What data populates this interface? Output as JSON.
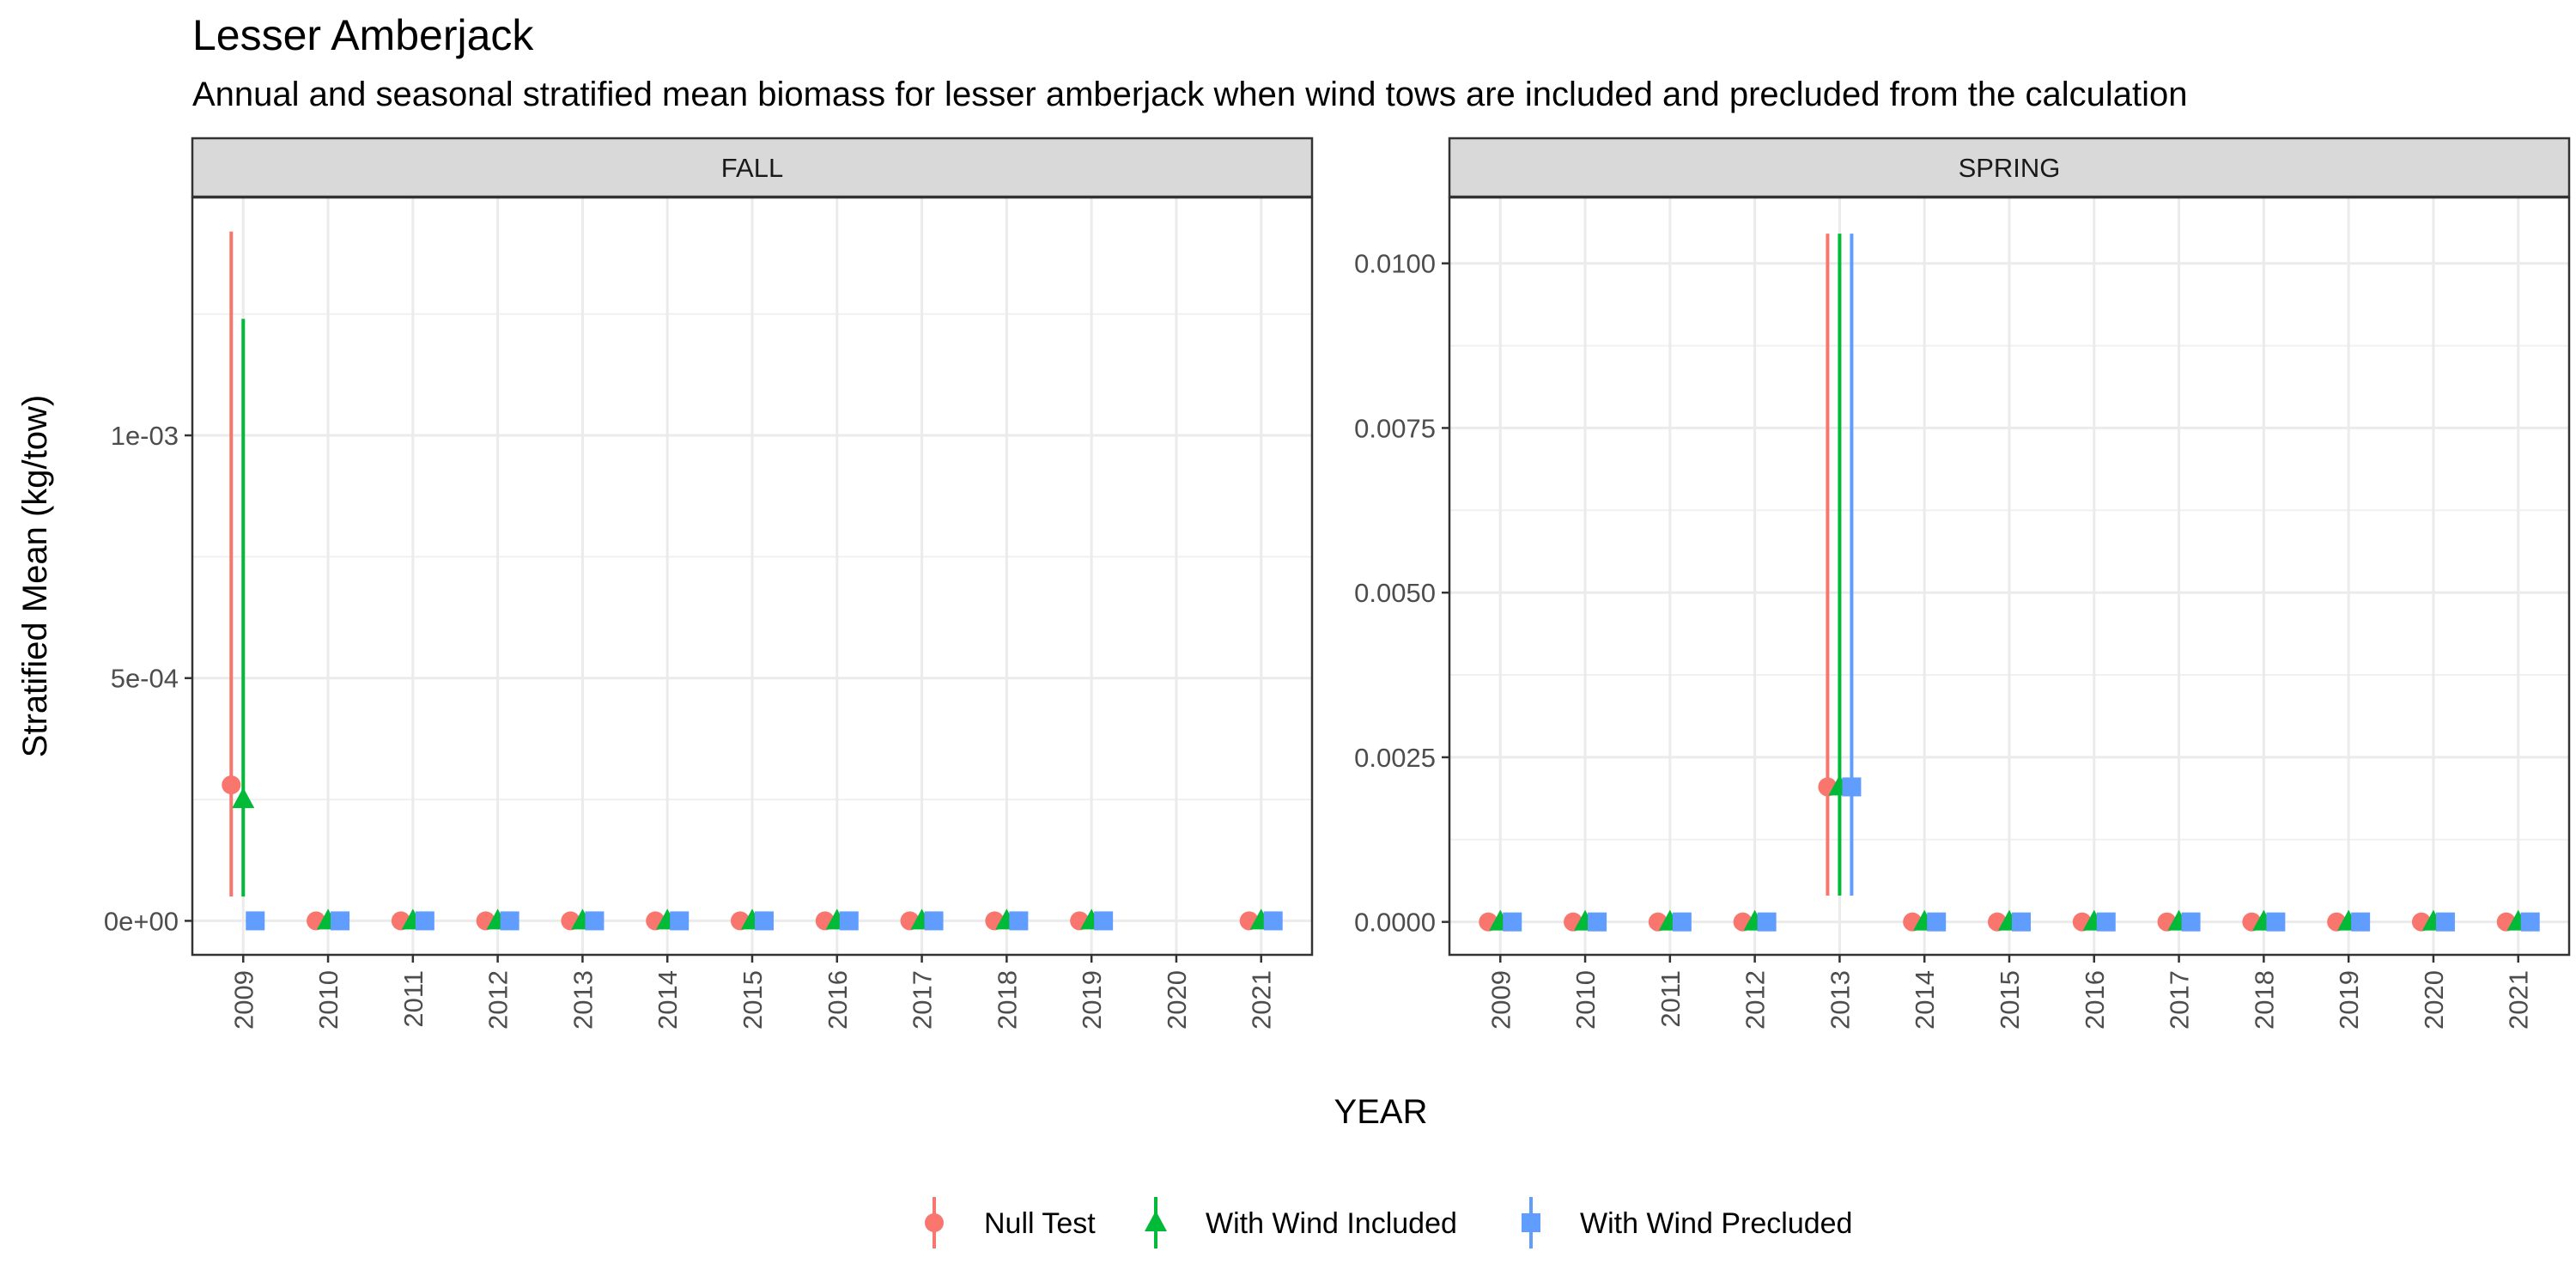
{
  "title": "Lesser Amberjack",
  "subtitle": "Annual and seasonal stratified mean biomass for lesser amberjack when wind tows are included and precluded from the calculation",
  "chart_data": {
    "type": "scatter",
    "xlabel": "YEAR",
    "ylabel": "Stratified Mean (kg/tow)",
    "legend_position": "bottom",
    "series_styles": [
      {
        "name": "Null Test",
        "color": "#F8766D",
        "shape": "circle"
      },
      {
        "name": "With Wind Included",
        "color": "#00BA38",
        "shape": "triangle"
      },
      {
        "name": "With Wind Precluded",
        "color": "#619CFF",
        "shape": "square"
      }
    ],
    "panels": [
      {
        "label": "FALL",
        "x": [
          "2009",
          "2010",
          "2011",
          "2012",
          "2013",
          "2014",
          "2015",
          "2016",
          "2017",
          "2018",
          "2019",
          "2020",
          "2021"
        ],
        "ylim": [
          -7e-05,
          0.00149
        ],
        "yticks": [
          0,
          0.0005,
          0.001
        ],
        "ytick_labels": [
          "0e+00",
          "5e-04",
          "1e-03"
        ],
        "series": [
          {
            "name": "Null Test",
            "values": [
              0.00028,
              0,
              0,
              0,
              0,
              0,
              0,
              0,
              0,
              0,
              0,
              null,
              0
            ],
            "lower": [
              5e-05,
              null,
              null,
              null,
              null,
              null,
              null,
              null,
              null,
              null,
              null,
              null,
              null
            ],
            "upper": [
              0.00142,
              null,
              null,
              null,
              null,
              null,
              null,
              null,
              null,
              null,
              null,
              null,
              null
            ]
          },
          {
            "name": "With Wind Included",
            "values": [
              0.00025,
              0,
              0,
              0,
              0,
              0,
              0,
              0,
              0,
              0,
              0,
              null,
              0
            ],
            "lower": [
              5e-05,
              null,
              null,
              null,
              null,
              null,
              null,
              null,
              null,
              null,
              null,
              null,
              null
            ],
            "upper": [
              0.00124,
              null,
              null,
              null,
              null,
              null,
              null,
              null,
              null,
              null,
              null,
              null,
              null
            ]
          },
          {
            "name": "With Wind Precluded",
            "values": [
              0,
              0,
              0,
              0,
              0,
              0,
              0,
              0,
              0,
              0,
              0,
              null,
              0
            ],
            "lower": [
              null,
              null,
              null,
              null,
              null,
              null,
              null,
              null,
              null,
              null,
              null,
              null,
              null
            ],
            "upper": [
              null,
              null,
              null,
              null,
              null,
              null,
              null,
              null,
              null,
              null,
              null,
              null,
              null
            ]
          }
        ]
      },
      {
        "label": "SPRING",
        "x": [
          "2009",
          "2010",
          "2011",
          "2012",
          "2013",
          "2014",
          "2015",
          "2016",
          "2017",
          "2018",
          "2019",
          "2020",
          "2021"
        ],
        "ylim": [
          -0.0005,
          0.011
        ],
        "yticks": [
          0,
          0.0025,
          0.005,
          0.0075,
          0.01
        ],
        "ytick_labels": [
          "0.0000",
          "0.0025",
          "0.0050",
          "0.0075",
          "0.0100"
        ],
        "series": [
          {
            "name": "Null Test",
            "values": [
              0,
              0,
              0,
              0,
              0.00205,
              0,
              0,
              0,
              0,
              0,
              0,
              0,
              0
            ],
            "lower": [
              null,
              null,
              null,
              null,
              0.0004,
              null,
              null,
              null,
              null,
              null,
              null,
              null,
              null
            ],
            "upper": [
              null,
              null,
              null,
              null,
              0.01045,
              null,
              null,
              null,
              null,
              null,
              null,
              null,
              null
            ]
          },
          {
            "name": "With Wind Included",
            "values": [
              0,
              0,
              0,
              0,
              0.00205,
              0,
              0,
              0,
              0,
              0,
              0,
              0,
              0
            ],
            "lower": [
              null,
              null,
              null,
              null,
              0.0004,
              null,
              null,
              null,
              null,
              null,
              null,
              null,
              null
            ],
            "upper": [
              null,
              null,
              null,
              null,
              0.01045,
              null,
              null,
              null,
              null,
              null,
              null,
              null,
              null
            ]
          },
          {
            "name": "With Wind Precluded",
            "values": [
              0,
              0,
              0,
              0,
              0.00205,
              0,
              0,
              0,
              0,
              0,
              0,
              0,
              0
            ],
            "lower": [
              null,
              null,
              null,
              null,
              0.0004,
              null,
              null,
              null,
              null,
              null,
              null,
              null,
              null
            ],
            "upper": [
              null,
              null,
              null,
              null,
              0.01045,
              null,
              null,
              null,
              null,
              null,
              null,
              null,
              null
            ]
          }
        ]
      }
    ]
  }
}
